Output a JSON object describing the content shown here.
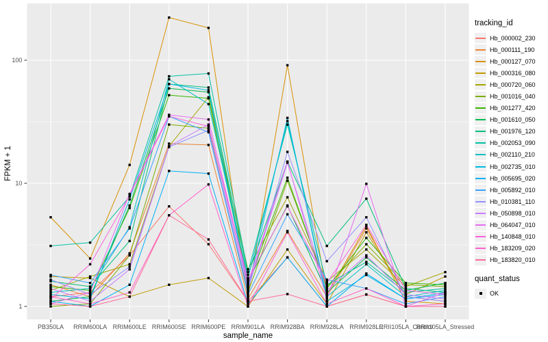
{
  "chart_data": {
    "type": "line",
    "title": "",
    "xlabel": "sample_name",
    "ylabel": "FPKM + 1",
    "y_scale": "log10",
    "y_ticks": [
      1,
      10,
      100
    ],
    "ylim": [
      0.77,
      290
    ],
    "grid": true,
    "legend_position": "right",
    "point_shape": "filled-square",
    "point_color": "#000000",
    "panel_bg": "#EBEBEB",
    "grid_color": "#FFFFFF",
    "x_categories": [
      "PB350LA",
      "RRIM600LA",
      "RRIM600LE",
      "RRIM600SE",
      "RRIM600PE",
      "RRIM901LA",
      "RRIM928BA",
      "RRIM928LA",
      "RRIM928LE",
      "RRII105LA_Control",
      "RRII105LA_Stressed"
    ],
    "series": [
      {
        "name": "Hb_000002_230",
        "color": "#F8766D",
        "values": [
          1.2,
          1.3,
          2.6,
          6.5,
          3.2,
          1.1,
          2.5,
          1.0,
          1.25,
          1.0,
          1.0
        ]
      },
      {
        "name": "Hb_000111_190",
        "color": "#EA8331",
        "values": [
          1.5,
          1.2,
          2.7,
          21,
          20.5,
          1.15,
          4.1,
          1.2,
          4.3,
          1.2,
          1.1
        ]
      },
      {
        "name": "Hb_000127_070",
        "color": "#D89000",
        "values": [
          5.3,
          2.45,
          14.1,
          222,
          183,
          1.2,
          91,
          1.25,
          4.5,
          1.1,
          1.05
        ]
      },
      {
        "name": "Hb_000316_080",
        "color": "#C09B00",
        "values": [
          1.75,
          1.7,
          1.2,
          1.5,
          1.7,
          1.0,
          2.9,
          1.05,
          4.0,
          1.25,
          1.75
        ]
      },
      {
        "name": "Hb_000720_060",
        "color": "#A3A500",
        "values": [
          1.35,
          1.75,
          2.2,
          20,
          50,
          2.0,
          7.7,
          1.6,
          2.9,
          1.45,
          1.9
        ]
      },
      {
        "name": "Hb_001016_040",
        "color": "#7CAE00",
        "values": [
          1.0,
          1.05,
          2.6,
          30,
          28,
          1.3,
          10.5,
          1.45,
          3.2,
          1.5,
          1.45
        ]
      },
      {
        "name": "Hb_001277_420",
        "color": "#39B600",
        "values": [
          1.45,
          1.35,
          6.3,
          52,
          49,
          1.5,
          11.1,
          1.4,
          3.6,
          1.55,
          1.5
        ]
      },
      {
        "name": "Hb_001610_050",
        "color": "#00BB4E",
        "values": [
          1.1,
          1.2,
          6.6,
          59,
          55,
          1.6,
          6.6,
          1.3,
          2.5,
          1.35,
          1.55
        ]
      },
      {
        "name": "Hb_001976_120",
        "color": "#00BF7D",
        "values": [
          1.6,
          1.45,
          3.4,
          64,
          60,
          1.8,
          15,
          3.1,
          7.5,
          1.4,
          1.3
        ]
      },
      {
        "name": "Hb_002053_090",
        "color": "#00C1A3",
        "values": [
          3.1,
          3.3,
          7.8,
          74,
          78,
          1.9,
          30,
          1.5,
          2.3,
          1.3,
          1.4
        ]
      },
      {
        "name": "Hb_002110_210",
        "color": "#00BFC4",
        "values": [
          1.3,
          1.4,
          4.4,
          70,
          44,
          1.7,
          32,
          1.2,
          2.2,
          1.2,
          1.35
        ]
      },
      {
        "name": "Hb_002735_010",
        "color": "#00BAE0",
        "values": [
          1.25,
          1.15,
          7.4,
          64,
          57,
          1.4,
          34,
          1.1,
          1.8,
          1.15,
          1.3
        ]
      },
      {
        "name": "Hb_005695_020",
        "color": "#00B0F6",
        "values": [
          1.1,
          1.0,
          1.5,
          12.6,
          12,
          1.05,
          2.5,
          1.0,
          1.85,
          1.15,
          1.25
        ]
      },
      {
        "name": "Hb_005892_010",
        "color": "#35A2FF",
        "values": [
          1.8,
          1.55,
          4.3,
          35,
          26,
          1.25,
          5.6,
          1.65,
          1.4,
          1.05,
          1.2
        ]
      },
      {
        "name": "Hb_010381_110",
        "color": "#9590FF",
        "values": [
          1.65,
          1.25,
          2.1,
          19.7,
          27,
          1.35,
          18,
          2.33,
          5.3,
          1.2,
          1.1
        ]
      },
      {
        "name": "Hb_050898_010",
        "color": "#C77CFF",
        "values": [
          1.4,
          1.1,
          2.0,
          20,
          30,
          1.45,
          14.7,
          1.35,
          2.6,
          1.25,
          1.15
        ]
      },
      {
        "name": "Hb_064047_010",
        "color": "#E76BF3",
        "values": [
          1.05,
          1.3,
          8.2,
          36,
          33,
          1.55,
          15,
          1.15,
          9.9,
          1.0,
          1.3
        ]
      },
      {
        "name": "Hb_140848_010",
        "color": "#FA62DB",
        "values": [
          1.15,
          2.2,
          8.0,
          35,
          29,
          1.65,
          6.5,
          1.55,
          4.6,
          1.35,
          1.25
        ]
      },
      {
        "name": "Hb_183209_020",
        "color": "#FF61CC",
        "values": [
          1.2,
          1.05,
          1.3,
          5.5,
          9.8,
          1.0,
          4.0,
          1.05,
          1.4,
          1.0,
          1.05
        ]
      },
      {
        "name": "Hb_183820_010",
        "color": "#FF6A98",
        "values": [
          1.05,
          1.0,
          1.2,
          5.5,
          3.5,
          1.1,
          1.26,
          1.0,
          1.25,
          1.0,
          1.0
        ]
      }
    ]
  },
  "legend": {
    "color_title": "tracking_id",
    "shape_title": "quant_status",
    "shape_items": [
      {
        "label": "OK"
      }
    ]
  }
}
